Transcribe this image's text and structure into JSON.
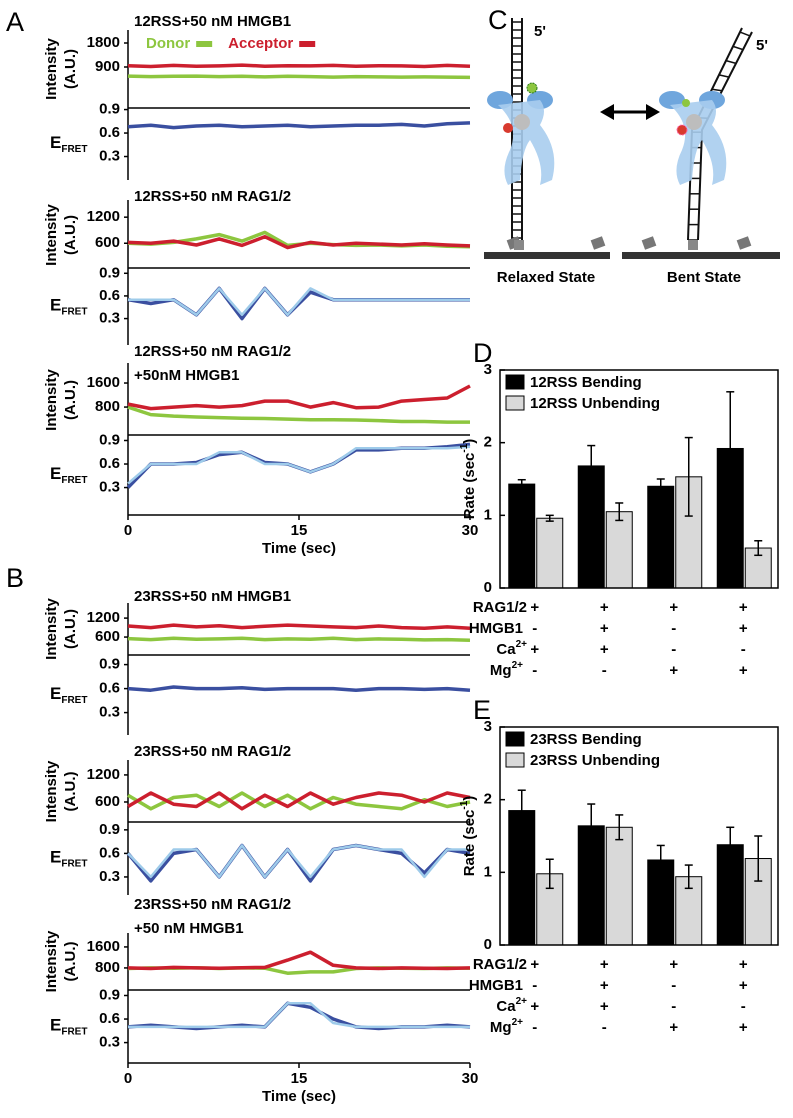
{
  "chart_data": [
    {
      "type": "trace",
      "label": "A",
      "title": [
        "12RSS+50 nM HMGB1"
      ],
      "x": [
        0,
        2,
        4,
        6,
        8,
        10,
        12,
        14,
        16,
        18,
        20,
        22,
        24,
        26,
        28,
        30
      ],
      "xlim": [
        0,
        30
      ],
      "intensity": {
        "ylabel": [
          "Intensity",
          "(A.U.)"
        ],
        "ylim": [
          -450,
          2100
        ],
        "yticks": [
          900,
          1800
        ],
        "series": [
          {
            "name": "Donor",
            "color": "#8dc63f",
            "values": [
              560,
              540,
              550,
              560,
              540,
              550,
              530,
              550,
              540,
              520,
              540,
              530,
              520,
              530,
              520,
              510
            ]
          },
          {
            "name": "Acceptor",
            "color": "#cc1f2e",
            "values": [
              950,
              920,
              960,
              930,
              940,
              970,
              930,
              950,
              940,
              960,
              930,
              950,
              940,
              920,
              960,
              930
            ]
          }
        ]
      },
      "efret": {
        "ylabel": "E",
        "ylabel_sub": "FRET",
        "ylim": [
          0,
          0.92
        ],
        "yticks": [
          0.3,
          0.6,
          0.9
        ],
        "series": [
          {
            "color": "#3a4fa0",
            "values": [
              0.68,
              0.7,
              0.67,
              0.69,
              0.7,
              0.68,
              0.69,
              0.7,
              0.68,
              0.69,
              0.7,
              0.7,
              0.71,
              0.69,
              0.72,
              0.73
            ]
          }
        ]
      }
    },
    {
      "type": "trace",
      "title": [
        "12RSS+50 nM RAG1/2"
      ],
      "x": [
        0,
        2,
        4,
        6,
        8,
        10,
        12,
        14,
        16,
        18,
        20,
        22,
        24,
        26,
        28,
        30
      ],
      "xlim": [
        0,
        30
      ],
      "intensity": {
        "ylabel": [
          "Intensity",
          "(A.U.)"
        ],
        "ylim": [
          100,
          1480
        ],
        "yticks": [
          600,
          1200
        ],
        "series": [
          {
            "color": "#8dc63f",
            "values": [
              600,
              580,
              620,
              700,
              800,
              650,
              850,
              550,
              600,
              570,
              550,
              560,
              540,
              560,
              530,
              520
            ]
          },
          {
            "color": "#cc1f2e",
            "values": [
              620,
              600,
              650,
              560,
              700,
              550,
              750,
              500,
              620,
              560,
              600,
              580,
              560,
              590,
              560,
              540
            ]
          }
        ]
      },
      "efret": {
        "ylabel": "E",
        "ylabel_sub": "FRET",
        "ylim": [
          -0.05,
          0.97
        ],
        "yticks": [
          0.3,
          0.6,
          0.9
        ],
        "series": [
          {
            "color": "#3a4fa0",
            "values": [
              0.55,
              0.5,
              0.55,
              0.35,
              0.7,
              0.3,
              0.7,
              0.35,
              0.65,
              0.55,
              0.55,
              0.55,
              0.55,
              0.55,
              0.55,
              0.55
            ]
          },
          {
            "color": "#9ecbea",
            "values": [
              0.55,
              0.55,
              0.55,
              0.35,
              0.7,
              0.35,
              0.7,
              0.35,
              0.7,
              0.55,
              0.55,
              0.55,
              0.55,
              0.55,
              0.55,
              0.55
            ]
          }
        ]
      }
    },
    {
      "type": "trace",
      "title": [
        "12RSS+50 nM RAG1/2",
        "+50nM HMGB1"
      ],
      "x": [
        0,
        2,
        4,
        6,
        8,
        10,
        12,
        14,
        16,
        18,
        20,
        22,
        24,
        26,
        28,
        30
      ],
      "xlim": [
        0,
        30
      ],
      "xticks": [
        0,
        15,
        30
      ],
      "xlabel": "Time (sec)",
      "intensity": {
        "ylabel": [
          "Intensity",
          "(A.U.)"
        ],
        "ylim": [
          -30,
          2100
        ],
        "yticks": [
          800,
          1600
        ],
        "series": [
          {
            "color": "#8dc63f",
            "values": [
              800,
              550,
              500,
              470,
              450,
              430,
              420,
              400,
              380,
              380,
              370,
              350,
              320,
              320,
              300,
              300
            ]
          },
          {
            "color": "#cc1f2e",
            "values": [
              900,
              750,
              800,
              850,
              800,
              850,
              1000,
              1000,
              800,
              950,
              780,
              800,
              1000,
              1050,
              1100,
              1500
            ]
          }
        ]
      },
      "efret": {
        "ylabel": "E",
        "ylabel_sub": "FRET",
        "ylim": [
          -0.05,
          0.97
        ],
        "yticks": [
          0.3,
          0.6,
          0.9
        ],
        "series": [
          {
            "color": "#3a4fa0",
            "values": [
              0.3,
              0.6,
              0.6,
              0.62,
              0.72,
              0.75,
              0.62,
              0.6,
              0.5,
              0.6,
              0.78,
              0.78,
              0.8,
              0.8,
              0.82,
              0.85
            ]
          },
          {
            "color": "#9ecbea",
            "values": [
              0.35,
              0.6,
              0.6,
              0.6,
              0.75,
              0.75,
              0.6,
              0.6,
              0.5,
              0.6,
              0.8,
              0.8,
              0.8,
              0.8,
              0.8,
              0.82
            ]
          }
        ]
      }
    },
    {
      "type": "trace",
      "label": "B",
      "title": [
        "23RSS+50 nM HMGB1"
      ],
      "x": [
        0,
        2,
        4,
        6,
        8,
        10,
        12,
        14,
        16,
        18,
        20,
        22,
        24,
        26,
        28,
        30
      ],
      "xlim": [
        0,
        30
      ],
      "intensity": {
        "ylabel": [
          "Intensity",
          "(A.U.)"
        ],
        "ylim": [
          190,
          1520
        ],
        "yticks": [
          600,
          1200
        ],
        "series": [
          {
            "color": "#8dc63f",
            "values": [
              550,
              520,
              560,
              530,
              540,
              560,
              520,
              540,
              530,
              560,
              520,
              540,
              530,
              510,
              520,
              500
            ]
          },
          {
            "color": "#cc1f2e",
            "values": [
              950,
              900,
              980,
              920,
              960,
              900,
              940,
              980,
              950,
              920,
              900,
              950,
              900,
              880,
              920,
              880
            ]
          }
        ]
      },
      "efret": {
        "ylabel": "E",
        "ylabel_sub": "FRET",
        "ylim": [
          0.02,
          1.02
        ],
        "yticks": [
          0.3,
          0.6,
          0.9
        ],
        "series": [
          {
            "color": "#3a4fa0",
            "values": [
              0.6,
              0.58,
              0.62,
              0.6,
              0.6,
              0.61,
              0.59,
              0.6,
              0.6,
              0.6,
              0.58,
              0.6,
              0.6,
              0.59,
              0.6,
              0.58
            ]
          }
        ]
      }
    },
    {
      "type": "trace",
      "title": [
        "23RSS+50 nM RAG1/2"
      ],
      "x": [
        0,
        2,
        4,
        6,
        8,
        10,
        12,
        14,
        16,
        18,
        20,
        22,
        24,
        26,
        28,
        30
      ],
      "xlim": [
        0,
        30
      ],
      "intensity": {
        "ylabel": [
          "Intensity",
          "(A.U.)"
        ],
        "ylim": [
          245,
          1420
        ],
        "yticks": [
          600,
          1200
        ],
        "series": [
          {
            "color": "#8dc63f",
            "values": [
              750,
              450,
              700,
              750,
              500,
              800,
              500,
              750,
              450,
              700,
              550,
              500,
              450,
              650,
              500,
              600
            ]
          },
          {
            "color": "#cc1f2e",
            "values": [
              500,
              800,
              550,
              500,
              800,
              450,
              750,
              500,
              800,
              550,
              700,
              800,
              750,
              600,
              800,
              700
            ]
          }
        ]
      },
      "efret": {
        "ylabel": "E",
        "ylabel_sub": "FRET",
        "ylim": [
          0.07,
          1.0
        ],
        "yticks": [
          0.3,
          0.6,
          0.9
        ],
        "series": [
          {
            "color": "#3a4fa0",
            "values": [
              0.6,
              0.25,
              0.6,
              0.65,
              0.3,
              0.7,
              0.3,
              0.65,
              0.25,
              0.65,
              0.7,
              0.65,
              0.6,
              0.35,
              0.65,
              0.6
            ]
          },
          {
            "color": "#9ecbea",
            "values": [
              0.6,
              0.3,
              0.65,
              0.65,
              0.3,
              0.7,
              0.3,
              0.65,
              0.3,
              0.65,
              0.7,
              0.65,
              0.65,
              0.3,
              0.65,
              0.65
            ]
          }
        ]
      }
    },
    {
      "type": "trace",
      "title": [
        "23RSS+50 nM RAG1/2",
        "+50 nM HMGB1"
      ],
      "x": [
        0,
        2,
        4,
        6,
        8,
        10,
        12,
        14,
        16,
        18,
        20,
        22,
        24,
        26,
        28,
        30
      ],
      "xlim": [
        0,
        30
      ],
      "xticks": [
        0,
        15,
        30
      ],
      "xlabel": "Time (sec)",
      "intensity": {
        "ylabel": [
          "Intensity",
          "(A.U.)"
        ],
        "ylim": [
          150,
          1940
        ],
        "yticks": [
          800,
          1600
        ],
        "series": [
          {
            "color": "#8dc63f",
            "values": [
              780,
              800,
              790,
              810,
              780,
              800,
              790,
              600,
              650,
              650,
              780,
              800,
              790,
              780,
              800,
              790
            ]
          },
          {
            "color": "#cc1f2e",
            "values": [
              800,
              780,
              820,
              800,
              790,
              810,
              820,
              1100,
              1400,
              900,
              800,
              780,
              800,
              790,
              780,
              800
            ]
          }
        ]
      },
      "efret": {
        "ylabel": "E",
        "ylabel_sub": "FRET",
        "ylim": [
          0.04,
          0.97
        ],
        "yticks": [
          0.3,
          0.6,
          0.9
        ],
        "series": [
          {
            "color": "#3a4fa0",
            "values": [
              0.5,
              0.52,
              0.5,
              0.48,
              0.5,
              0.52,
              0.5,
              0.8,
              0.75,
              0.6,
              0.5,
              0.48,
              0.5,
              0.5,
              0.52,
              0.5
            ]
          },
          {
            "color": "#9ecbea",
            "values": [
              0.5,
              0.5,
              0.5,
              0.5,
              0.5,
              0.5,
              0.5,
              0.8,
              0.8,
              0.55,
              0.5,
              0.5,
              0.5,
              0.5,
              0.5,
              0.5
            ]
          }
        ]
      }
    },
    {
      "type": "bar",
      "label": "D",
      "ylabel": "Rate (sec",
      "ylabel_sup": "-1",
      "ylabel_end": ")",
      "ylim": [
        0,
        3
      ],
      "yticks": [
        0,
        1,
        2,
        3
      ],
      "series": [
        {
          "name": "12RSS Bending",
          "color": "#000000",
          "values": [
            1.43,
            1.68,
            1.4,
            1.92
          ],
          "errors": [
            0.06,
            0.28,
            0.1,
            0.78
          ]
        },
        {
          "name": "12RSS Unbending",
          "color": "#d9d9d9",
          "values": [
            0.96,
            1.05,
            1.53,
            0.55
          ],
          "errors": [
            0.04,
            0.12,
            0.54,
            0.1
          ]
        }
      ],
      "conditions": [
        {
          "name": "RAG1/2",
          "values": [
            "+",
            "+",
            "+",
            "+"
          ]
        },
        {
          "name": "HMGB1",
          "values": [
            "-",
            "+",
            "-",
            "+"
          ]
        },
        {
          "name": "Ca",
          "sup": "2+",
          "values": [
            "+",
            "+",
            "-",
            "-"
          ]
        },
        {
          "name": "Mg",
          "sup": "2+",
          "values": [
            "-",
            "-",
            "+",
            "+"
          ]
        }
      ]
    },
    {
      "type": "bar",
      "label": "E",
      "ylabel": "Rate (sec",
      "ylabel_sup": "-1",
      "ylabel_end": ")",
      "ylim": [
        0,
        3
      ],
      "yticks": [
        0,
        1,
        2,
        3
      ],
      "series": [
        {
          "name": "23RSS Bending",
          "color": "#000000",
          "values": [
            1.85,
            1.64,
            1.17,
            1.38
          ],
          "errors": [
            0.28,
            0.3,
            0.2,
            0.24
          ]
        },
        {
          "name": "23RSS Unbending",
          "color": "#d9d9d9",
          "values": [
            0.98,
            1.62,
            0.94,
            1.19
          ],
          "errors": [
            0.2,
            0.17,
            0.16,
            0.31
          ]
        }
      ],
      "conditions": [
        {
          "name": "RAG1/2",
          "values": [
            "+",
            "+",
            "+",
            "+"
          ]
        },
        {
          "name": "HMGB1",
          "values": [
            "-",
            "+",
            "-",
            "+"
          ]
        },
        {
          "name": "Ca",
          "sup": "2+",
          "values": [
            "+",
            "+",
            "-",
            "-"
          ]
        },
        {
          "name": "Mg",
          "sup": "2+",
          "values": [
            "-",
            "-",
            "+",
            "+"
          ]
        }
      ]
    }
  ],
  "diagram": {
    "label": "C",
    "five_prime": [
      "5'",
      "5'"
    ],
    "states": [
      "Relaxed State",
      "Bent State"
    ]
  }
}
